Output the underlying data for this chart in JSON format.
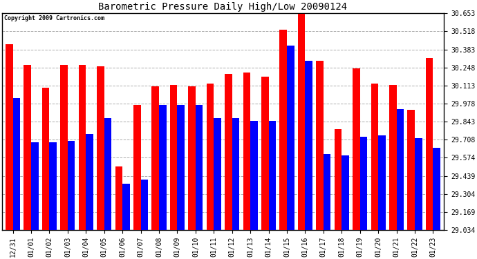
{
  "title": "Barometric Pressure Daily High/Low 20090124",
  "copyright": "Copyright 2009 Cartronics.com",
  "dates": [
    "12/31",
    "01/01",
    "01/02",
    "01/03",
    "01/04",
    "01/05",
    "01/06",
    "01/07",
    "01/08",
    "01/09",
    "01/10",
    "01/11",
    "01/12",
    "01/13",
    "01/14",
    "01/15",
    "01/16",
    "01/17",
    "01/18",
    "01/19",
    "01/20",
    "01/21",
    "01/22",
    "01/23"
  ],
  "highs": [
    30.42,
    30.27,
    30.1,
    30.27,
    30.27,
    30.26,
    29.51,
    29.97,
    30.11,
    30.12,
    30.11,
    30.13,
    30.2,
    30.21,
    30.18,
    30.53,
    30.65,
    30.3,
    29.79,
    30.24,
    30.13,
    30.12,
    29.93,
    30.32
  ],
  "lows": [
    30.02,
    29.69,
    29.69,
    29.7,
    29.75,
    29.87,
    29.38,
    29.41,
    29.97,
    29.97,
    29.97,
    29.87,
    29.87,
    29.85,
    29.85,
    30.41,
    30.3,
    29.6,
    29.59,
    29.73,
    29.74,
    29.94,
    29.72,
    29.65
  ],
  "ymin": 29.034,
  "ymax": 30.653,
  "ytick_values": [
    29.034,
    29.169,
    29.304,
    29.439,
    29.574,
    29.708,
    29.843,
    29.978,
    30.113,
    30.248,
    30.383,
    30.518,
    30.653
  ],
  "high_color": "#ff0000",
  "low_color": "#0000ff",
  "bg_color": "#ffffff",
  "grid_color": "#aaaaaa",
  "bar_width": 0.4,
  "title_fontsize": 10,
  "copyright_fontsize": 6,
  "tick_fontsize": 7
}
